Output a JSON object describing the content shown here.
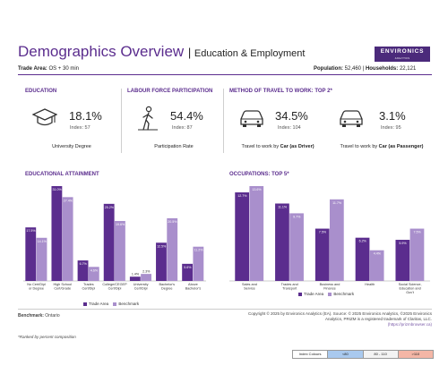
{
  "header": {
    "title": "Demographics Overview",
    "subtitle": "Education & Employment",
    "logo_text": "ENVIRONICS",
    "logo_tagline": "ANALYTICS"
  },
  "meta": {
    "trade_area_label": "Trade Area:",
    "trade_area_value": "OS + 30 min",
    "population_label": "Population:",
    "population_value": "52,460",
    "households_label": "Households:",
    "households_value": "22,121"
  },
  "kpis": {
    "education": {
      "header": "EDUCATION",
      "value": "18.1%",
      "index": "Index: 57",
      "caption": "University Degree"
    },
    "labour": {
      "header": "LABOUR FORCE PARTICIPATION",
      "value": "54.4%",
      "index": "Index: 87",
      "caption": "Participation Rate"
    },
    "travel_header": "METHOD OF TRAVEL TO WORK: TOP 2*",
    "travel1": {
      "value": "34.5%",
      "index": "Index: 104",
      "caption_pre": "Travel to work by ",
      "caption_bold": "Car (as Driver)"
    },
    "travel2": {
      "value": "3.1%",
      "index": "Index: 95",
      "caption_pre": "Travel to work by ",
      "caption_bold": "Car (as Passenger)"
    }
  },
  "legend": {
    "trade_area": "Trade Area",
    "benchmark": "Benchmark"
  },
  "colors": {
    "trade_area": "#5b2d8e",
    "benchmark": "#a98fcc",
    "accent": "#5b2d8e"
  },
  "chart_data": [
    {
      "type": "bar",
      "title": "EDUCATIONAL ATTAINMENT",
      "categories": [
        "No Cert/Dipl or Degree",
        "High School Cert/Grade",
        "Trades Cert/Dipl",
        "College/CEGEP Cert/Dipl",
        "University Cert/Dipl",
        "Bachelor's Degree",
        "Above Bachelor's"
      ],
      "series": [
        {
          "name": "Trade Area",
          "values": [
            17.5,
            31.0,
            6.7,
            25.2,
            1.4,
            12.5,
            5.6
          ]
        },
        {
          "name": "Benchmark",
          "values": [
            14.1,
            27.4,
            4.6,
            19.6,
            2.3,
            20.5,
            11.2
          ]
        }
      ],
      "data_labels": [
        [
          "17.5%",
          "31.0%",
          "6.7%",
          "25.2%",
          "1.4%",
          "12.5%",
          "5.6%"
        ],
        [
          "14.1%",
          "27.4%",
          "4.6%",
          "19.6%",
          "2.3%",
          "20.5%",
          "11.2%"
        ]
      ],
      "ylim": [
        0,
        31.0
      ]
    },
    {
      "type": "bar",
      "title": "OCCUPATIONS: TOP 5*",
      "categories": [
        "Sales and Service",
        "Trades and Transport",
        "Business and Finance",
        "Health",
        "Social Science, Education and Gov't"
      ],
      "series": [
        {
          "name": "Trade Area",
          "values": [
            12.7,
            11.1,
            7.5,
            6.2,
            5.9
          ]
        },
        {
          "name": "Benchmark",
          "values": [
            13.6,
            9.7,
            11.7,
            4.4,
            7.5
          ]
        }
      ],
      "data_labels": [
        [
          "12.7%",
          "11.1%",
          "7.5%",
          "6.2%",
          "5.9%"
        ],
        [
          "13.6%",
          "9.7%",
          "11.7%",
          "4.4%",
          "7.5%"
        ]
      ],
      "ylim": [
        0,
        13.6
      ]
    }
  ],
  "footer": {
    "benchmark_label": "Benchmark:",
    "benchmark_value": "Ontario",
    "ranked_note": "*Ranked by percent composition",
    "copyright_1": "Copyright © 2025 by Environics Analytics (EA). Source: © 2025 Environics Analytics, ©2025 Environics",
    "copyright_2": "Analytics, PRIZM is a registered trademark of Claritas, LLC.",
    "copyright_3": "(https://prizmbrowser.ca)",
    "key_title": "Index Colours",
    "key_low": "<80",
    "key_mid": "80 - 110",
    "key_high": ">110"
  }
}
